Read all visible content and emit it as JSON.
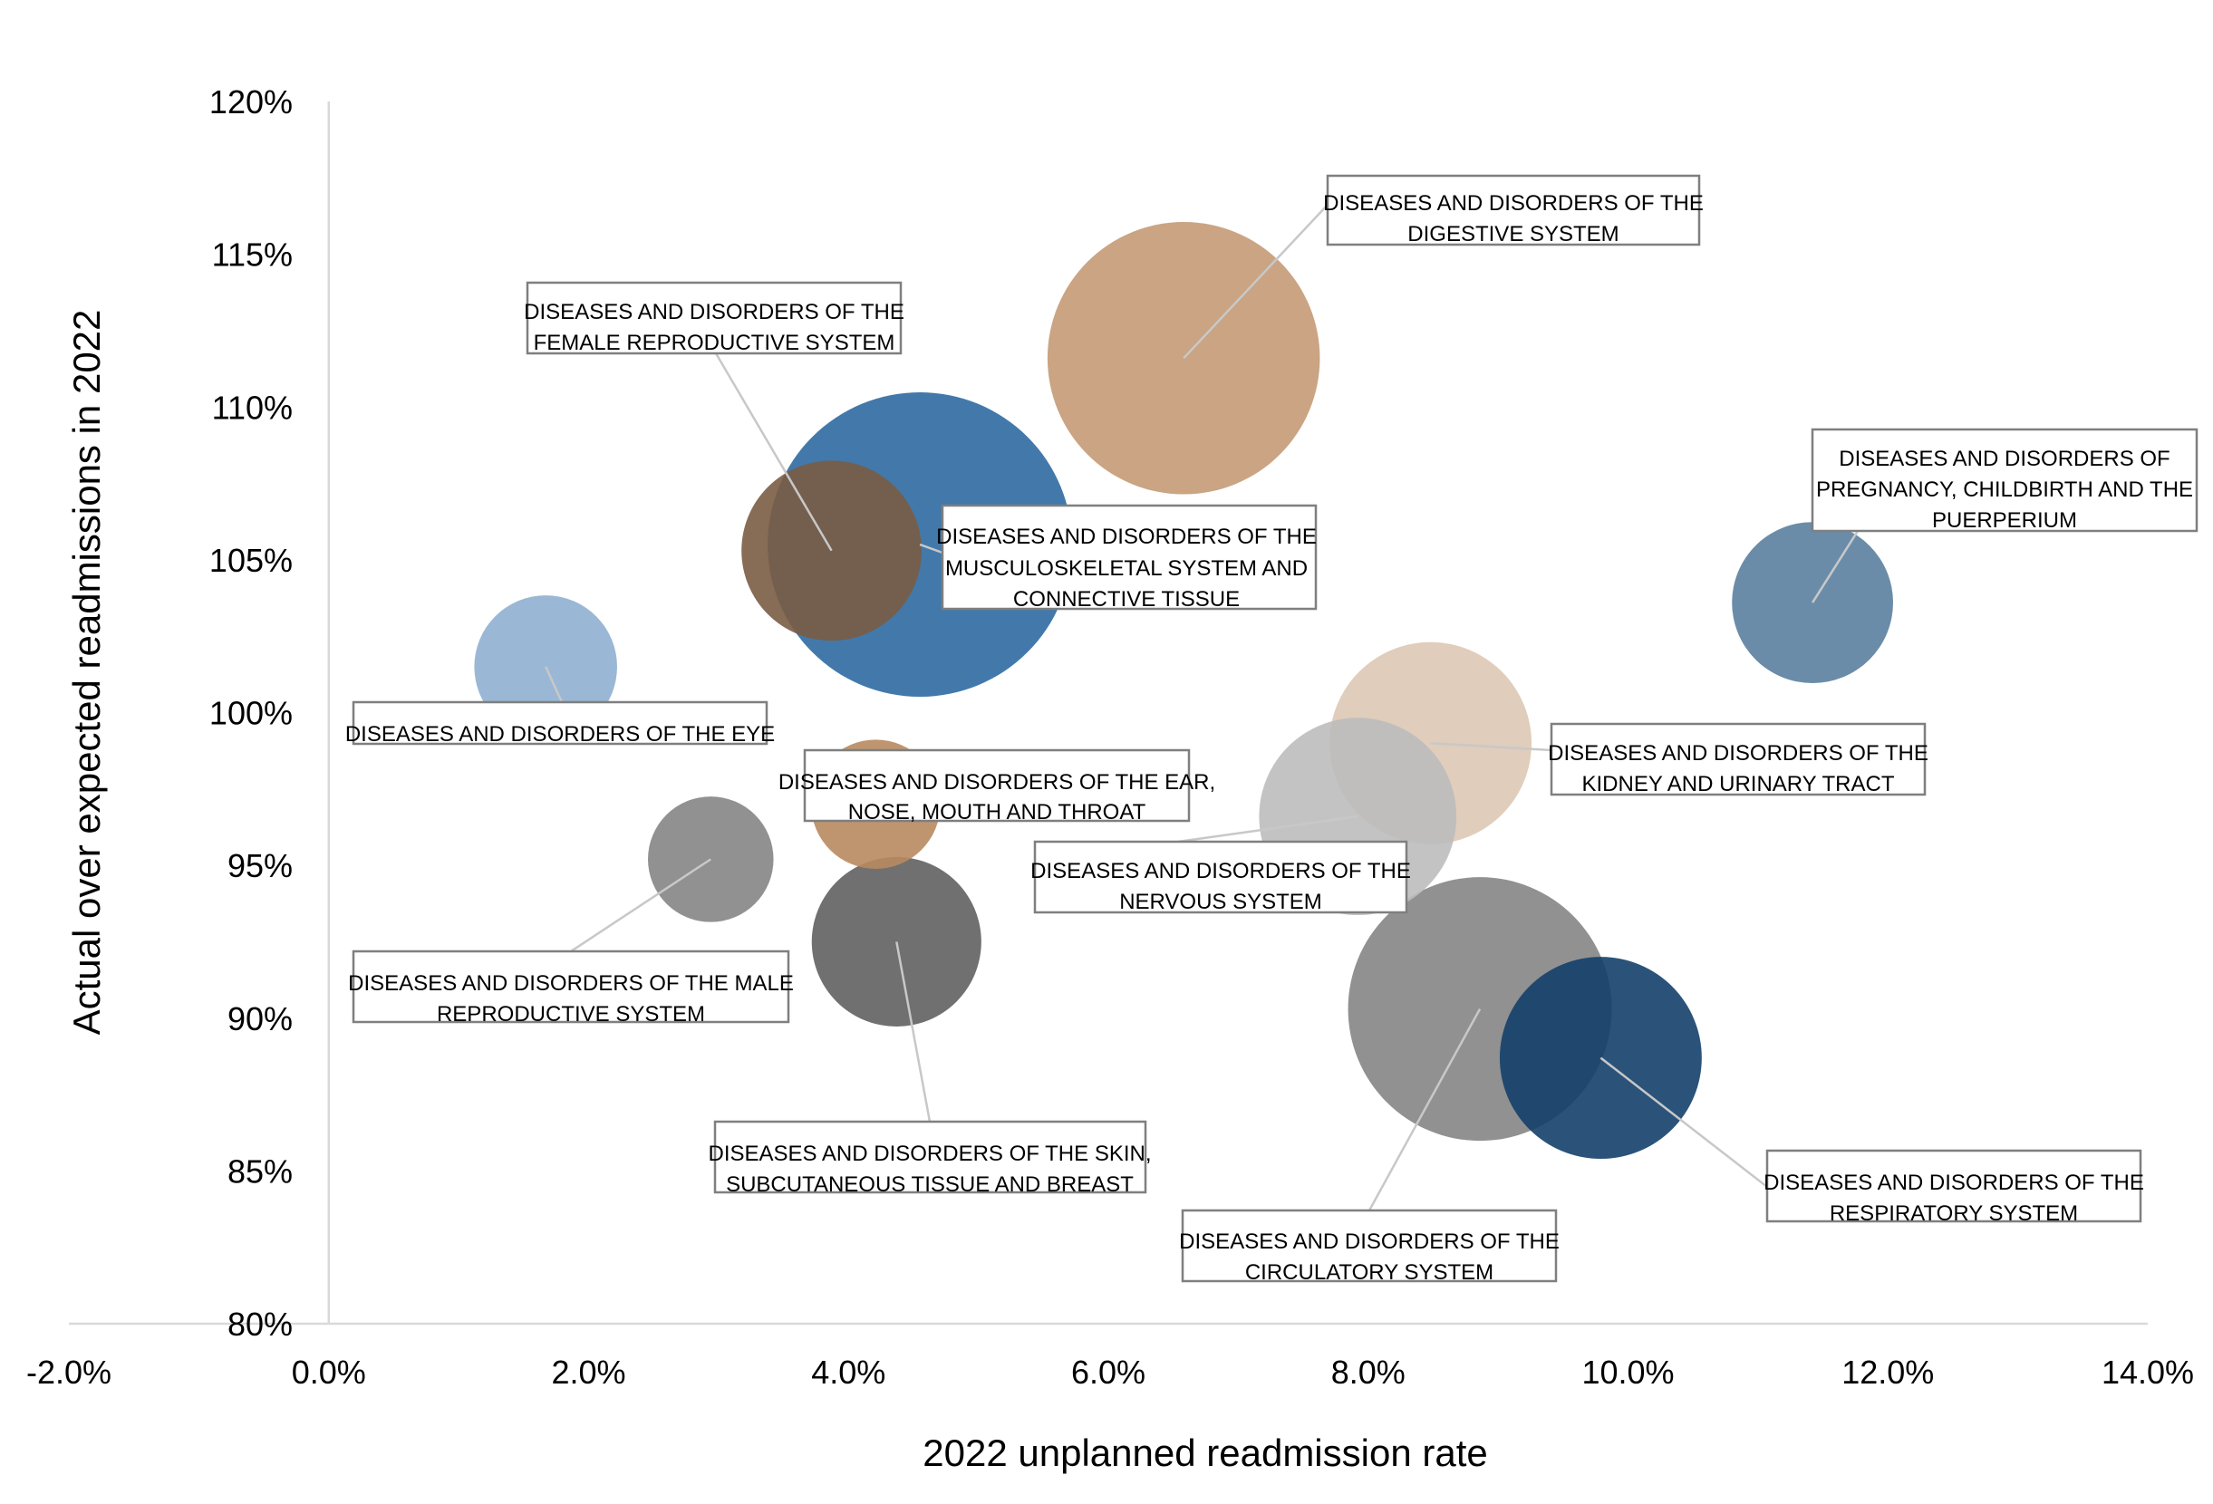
{
  "chart_data": {
    "type": "bubble",
    "xlabel": "2022 unplanned readmission rate",
    "ylabel": "Actual over expected readmissions in 2022",
    "xlim": [
      -0.02,
      0.14
    ],
    "ylim": [
      0.8,
      1.2
    ],
    "x_ticks": [
      "-2.0%",
      "0.0%",
      "2.0%",
      "4.0%",
      "6.0%",
      "8.0%",
      "10.0%",
      "12.0%",
      "14.0%"
    ],
    "y_ticks": [
      "80%",
      "85%",
      "90%",
      "95%",
      "100%",
      "105%",
      "110%",
      "115%",
      "120%"
    ],
    "grid": false,
    "legend": "none",
    "points": [
      {
        "label": "DISEASES AND DISORDERS OF THE MUSCULOSKELETAL SYSTEM AND CONNECTIVE TISSUE",
        "x": 0.0455,
        "y": 1.055,
        "size": 1.0,
        "color": "#2e6aa1"
      },
      {
        "label": "DISEASES AND DISORDERS OF THE DIGESTIVE SYSTEM",
        "x": 0.0658,
        "y": 1.116,
        "size": 0.8,
        "color": "#c49a76"
      },
      {
        "label": "DISEASES AND DISORDERS OF THE FEMALE REPRODUCTIVE SYSTEM",
        "x": 0.0387,
        "y": 1.053,
        "size": 0.35,
        "color": "#7a5c44"
      },
      {
        "label": "DISEASES AND DISORDERS OF THE EYE",
        "x": 0.0167,
        "y": 1.015,
        "size": 0.22,
        "color": "#8fb0d0"
      },
      {
        "label": "DISEASES AND DISORDERS OF PREGNANCY, CHILDBIRTH AND THE PUERPERIUM",
        "x": 0.1142,
        "y": 1.036,
        "size": 0.28,
        "color": "#5a7fa0"
      },
      {
        "label": "DISEASES AND DISORDERS OF THE KIDNEY AND URINARY TRACT",
        "x": 0.0848,
        "y": 0.99,
        "size": 0.44,
        "color": "#ddc8b4"
      },
      {
        "label": "DISEASES AND DISORDERS OF THE NERVOUS SYSTEM",
        "x": 0.0792,
        "y": 0.966,
        "size": 0.42,
        "color": "#bdbdbd"
      },
      {
        "label": "DISEASES AND DISORDERS OF THE EAR, NOSE, MOUTH AND THROAT",
        "x": 0.0421,
        "y": 0.97,
        "size": 0.18,
        "color": "#b88a60"
      },
      {
        "label": "DISEASES AND DISORDERS OF THE MALE REPRODUCTIVE SYSTEM",
        "x": 0.0294,
        "y": 0.952,
        "size": 0.17,
        "color": "#858585"
      },
      {
        "label": "DISEASES AND DISORDERS OF THE SKIN, SUBCUTANEOUS TISSUE AND BREAST",
        "x": 0.0437,
        "y": 0.925,
        "size": 0.31,
        "color": "#616161"
      },
      {
        "label": "DISEASES AND DISORDERS OF THE CIRCULATORY SYSTEM",
        "x": 0.0886,
        "y": 0.903,
        "size": 0.75,
        "color": "#858585"
      },
      {
        "label": "DISEASES AND DISORDERS OF THE RESPIRATORY SYSTEM",
        "x": 0.0979,
        "y": 0.887,
        "size": 0.44,
        "color": "#14406b"
      }
    ]
  }
}
